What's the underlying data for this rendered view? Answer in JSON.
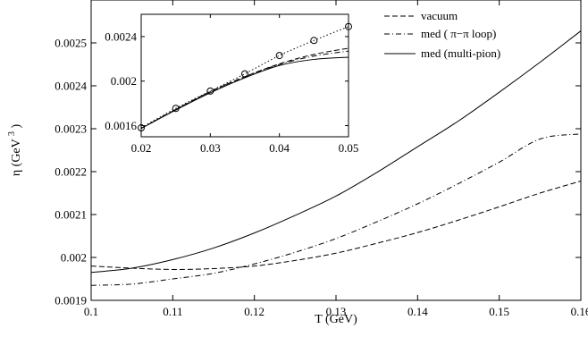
{
  "chart_data": [
    {
      "type": "line",
      "xlabel": "T (GeV)",
      "ylabel_main": "η",
      "ylabel_unit": "(GeV",
      "ylabel_exp": "3",
      "ylabel_close": ")",
      "xlim": [
        0.1,
        0.16
      ],
      "ylim": [
        0.0019,
        0.0026
      ],
      "xticks": [
        0.1,
        0.11,
        0.12,
        0.13,
        0.14,
        0.15,
        0.16
      ],
      "xtick_labels": [
        "0.1",
        "0.11",
        "0.12",
        "0.13",
        "0.14",
        "0.15",
        "0.16"
      ],
      "yticks": [
        0.0019,
        0.002,
        0.0021,
        0.0022,
        0.0023,
        0.0024,
        0.0025
      ],
      "ytick_labels": [
        "0.0019",
        "0.002",
        "0.0021",
        "0.0022",
        "0.0023",
        "0.0024",
        "0.0025"
      ],
      "legend_position": "top-right",
      "series": [
        {
          "name": "vacuum",
          "dash": "dashed",
          "x": [
            0.1,
            0.105,
            0.11,
            0.115,
            0.12,
            0.125,
            0.13,
            0.135,
            0.14,
            0.145,
            0.15,
            0.155,
            0.16
          ],
          "y": [
            0.00198,
            0.001975,
            0.001972,
            0.001974,
            0.00198,
            0.001993,
            0.00201,
            0.002033,
            0.002058,
            0.002087,
            0.002118,
            0.00215,
            0.002178
          ]
        },
        {
          "name": "med ( π−π loop)",
          "dash": "dashdot",
          "x": [
            0.1,
            0.105,
            0.11,
            0.115,
            0.12,
            0.125,
            0.13,
            0.135,
            0.14,
            0.145,
            0.15,
            0.155,
            0.16
          ],
          "y": [
            0.001935,
            0.001938,
            0.00195,
            0.001963,
            0.001985,
            0.002012,
            0.002044,
            0.002083,
            0.002125,
            0.002172,
            0.002222,
            0.002276,
            0.002288
          ]
        },
        {
          "name": "med (multi-pion)",
          "dash": "solid",
          "x": [
            0.1,
            0.105,
            0.11,
            0.115,
            0.12,
            0.125,
            0.13,
            0.135,
            0.14,
            0.145,
            0.15,
            0.155,
            0.16
          ],
          "y": [
            0.001965,
            0.001975,
            0.001995,
            0.002022,
            0.002057,
            0.002098,
            0.002143,
            0.002198,
            0.002258,
            0.002318,
            0.002385,
            0.002455,
            0.002528
          ]
        }
      ]
    },
    {
      "type": "line",
      "xlim": [
        0.02,
        0.05
      ],
      "ylim": [
        0.0015,
        0.0026
      ],
      "xticks": [
        0.02,
        0.03,
        0.04,
        0.05
      ],
      "xtick_labels": [
        "0.02",
        "0.03",
        "0.04",
        "0.05"
      ],
      "yticks": [
        0.0016,
        0.002,
        0.0024
      ],
      "ytick_labels": [
        "0.0016",
        "0.002",
        "0.0024"
      ],
      "series": [
        {
          "name": "vacuum",
          "dash": "dashed",
          "x": [
            0.02,
            0.025,
            0.03,
            0.035,
            0.04,
            0.045,
            0.05
          ],
          "y": [
            0.001575,
            0.001745,
            0.001905,
            0.00204,
            0.002155,
            0.00224,
            0.002295
          ]
        },
        {
          "name": "med ( π−π loop)",
          "dash": "dashdot",
          "x": [
            0.02,
            0.025,
            0.03,
            0.035,
            0.04,
            0.045,
            0.05
          ],
          "y": [
            0.001575,
            0.001745,
            0.001905,
            0.00204,
            0.00215,
            0.002225,
            0.00227
          ]
        },
        {
          "name": "med (multi-pion)",
          "dash": "solid",
          "x": [
            0.02,
            0.025,
            0.03,
            0.035,
            0.04,
            0.045,
            0.05
          ],
          "y": [
            0.001575,
            0.00174,
            0.001895,
            0.00203,
            0.00214,
            0.002195,
            0.002215
          ]
        },
        {
          "dash": "dotted",
          "markers": "circle",
          "x": [
            0.02,
            0.025,
            0.03,
            0.035,
            0.04,
            0.045,
            0.05
          ],
          "y": [
            0.00158,
            0.001755,
            0.00191,
            0.002065,
            0.00223,
            0.002365,
            0.00249
          ]
        }
      ]
    }
  ]
}
